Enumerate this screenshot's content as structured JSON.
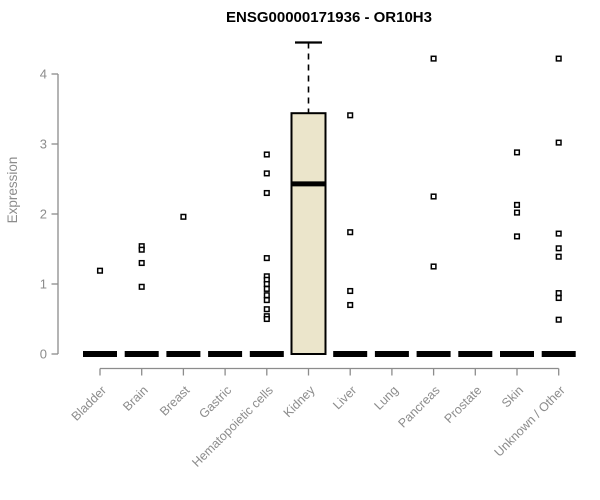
{
  "chart_data": {
    "type": "boxplot",
    "title": "ENSG00000171936 - OR10H3",
    "xlabel": "",
    "ylabel": "Expression",
    "ylim": [
      0,
      4.5
    ],
    "yticks": [
      0,
      1,
      2,
      3,
      4
    ],
    "grid": false,
    "legend": "none",
    "categories": [
      "Bladder",
      "Brain",
      "Breast",
      "Gastric",
      "Hematopoietic cells",
      "Kidney",
      "Liver",
      "Lung",
      "Pancreas",
      "Prostate",
      "Skin",
      "Unknown / Other"
    ],
    "boxes": [
      {
        "label": "Bladder",
        "q1": 0,
        "median": 0,
        "q3": 0,
        "whisker_low": 0,
        "whisker_high": 0,
        "outliers": [
          1.19
        ]
      },
      {
        "label": "Brain",
        "q1": 0,
        "median": 0,
        "q3": 0,
        "whisker_low": 0,
        "whisker_high": 0,
        "outliers": [
          1.54,
          1.49,
          1.3,
          0.96
        ]
      },
      {
        "label": "Breast",
        "q1": 0,
        "median": 0,
        "q3": 0,
        "whisker_low": 0,
        "whisker_high": 0,
        "outliers": [
          1.96
        ]
      },
      {
        "label": "Gastric",
        "q1": 0,
        "median": 0,
        "q3": 0,
        "whisker_low": 0,
        "whisker_high": 0,
        "outliers": []
      },
      {
        "label": "Hematopoietic cells",
        "q1": 0,
        "median": 0,
        "q3": 0,
        "whisker_low": 0,
        "whisker_high": 0,
        "outliers": [
          2.85,
          2.58,
          2.3,
          1.37,
          1.11,
          1.06,
          1.0,
          0.93,
          0.84,
          0.77,
          0.64,
          0.54,
          0.5
        ]
      },
      {
        "label": "Kidney",
        "q1": 0,
        "median": 2.43,
        "q3": 3.44,
        "whisker_low": 0,
        "whisker_high": 4.45,
        "outliers": []
      },
      {
        "label": "Liver",
        "q1": 0,
        "median": 0,
        "q3": 0,
        "whisker_low": 0,
        "whisker_high": 0,
        "outliers": [
          3.41,
          1.74,
          0.9,
          0.7
        ]
      },
      {
        "label": "Lung",
        "q1": 0,
        "median": 0,
        "q3": 0,
        "whisker_low": 0,
        "whisker_high": 0,
        "outliers": []
      },
      {
        "label": "Pancreas",
        "q1": 0,
        "median": 0,
        "q3": 0,
        "whisker_low": 0,
        "whisker_high": 0,
        "outliers": [
          4.22,
          2.25,
          1.25
        ]
      },
      {
        "label": "Prostate",
        "q1": 0,
        "median": 0,
        "q3": 0,
        "whisker_low": 0,
        "whisker_high": 0,
        "outliers": []
      },
      {
        "label": "Skin",
        "q1": 0,
        "median": 0,
        "q3": 0,
        "whisker_low": 0,
        "whisker_high": 0,
        "outliers": [
          2.88,
          2.13,
          2.02,
          1.68
        ]
      },
      {
        "label": "Unknown / Other",
        "q1": 0,
        "median": 0,
        "q3": 0,
        "whisker_low": 0,
        "whisker_high": 0,
        "outliers": [
          4.22,
          3.02,
          1.72,
          1.51,
          1.39,
          0.87,
          0.8,
          0.49
        ]
      }
    ],
    "colors": {
      "box_fill": "#ebe5cb",
      "box_stroke": "#000000",
      "median_color": "#000000",
      "whisker_color": "#000000",
      "point_stroke": "#000000",
      "point_fill": "#ffffff",
      "axis_color": "#8c8c8c",
      "label_color": "#8c8c8c",
      "title_color": "#000000",
      "background": "#ffffff"
    }
  }
}
